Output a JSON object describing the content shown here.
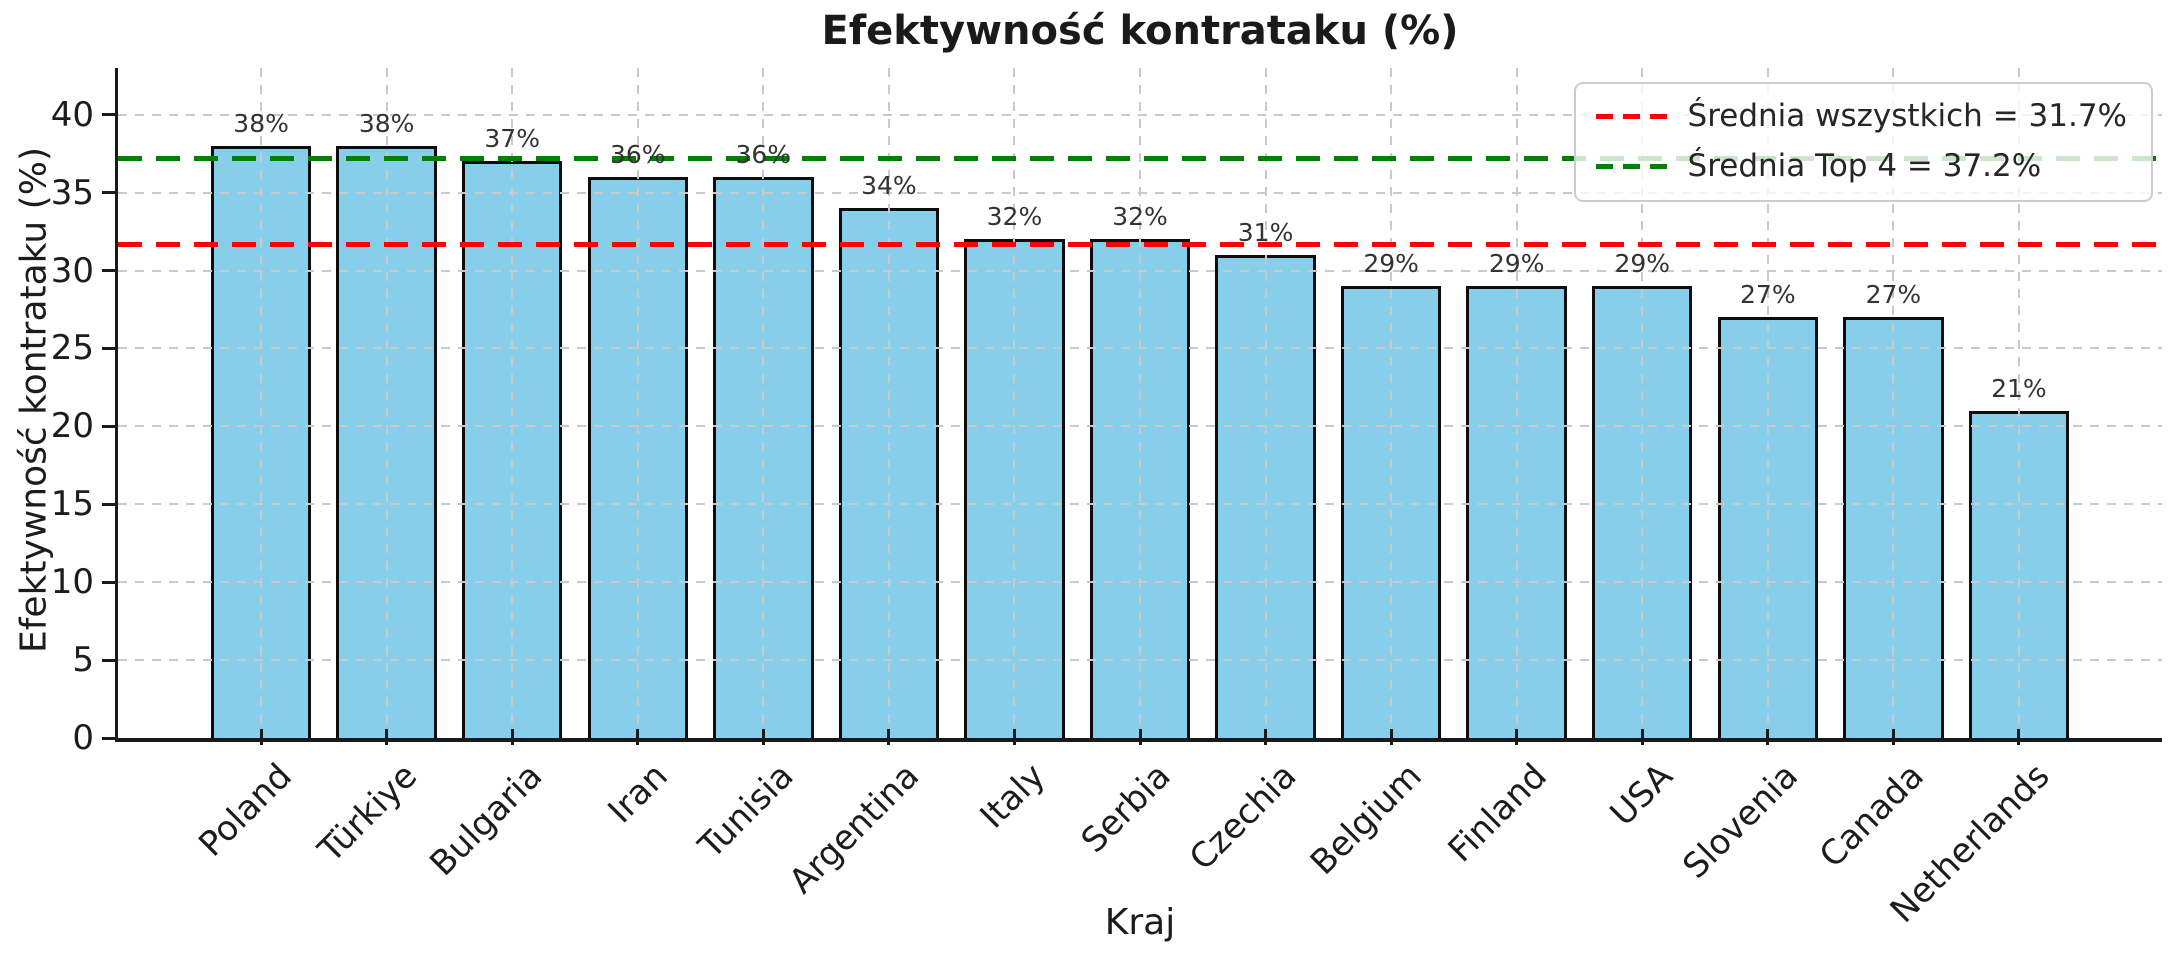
{
  "chart_data": {
    "type": "bar",
    "title": "Efektywność kontrataku (%)",
    "xlabel": "Kraj",
    "ylabel": "Efektywność kontrataku (%)",
    "categories": [
      "Poland",
      "Türkiye",
      "Bulgaria",
      "Iran",
      "Tunisia",
      "Argentina",
      "Italy",
      "Serbia",
      "Czechia",
      "Belgium",
      "Finland",
      "USA",
      "Slovenia",
      "Canada",
      "Netherlands"
    ],
    "values": [
      38,
      38,
      37,
      36,
      36,
      34,
      32,
      32,
      31,
      29,
      29,
      29,
      27,
      27,
      21
    ],
    "bar_labels": [
      "38%",
      "38%",
      "37%",
      "36%",
      "36%",
      "34%",
      "32%",
      "32%",
      "31%",
      "29%",
      "29%",
      "29%",
      "27%",
      "27%",
      "21%"
    ],
    "yticks": [
      0,
      5,
      10,
      15,
      20,
      25,
      30,
      35,
      40
    ],
    "ylim": [
      0,
      43
    ],
    "grid": true,
    "legend_position": "upper right",
    "bar_color": "#87CEEB",
    "bar_edge_color": "#0d0d0d",
    "grid_color": "#c9c9c9",
    "reference_lines": [
      {
        "value": 31.7,
        "color": "#ff0000",
        "style": "dashed",
        "label": "Średnia wszystkich = 31.7%"
      },
      {
        "value": 37.2,
        "color": "#008000",
        "style": "dashed",
        "label": "Średnia Top 4 = 37.2%"
      }
    ]
  }
}
